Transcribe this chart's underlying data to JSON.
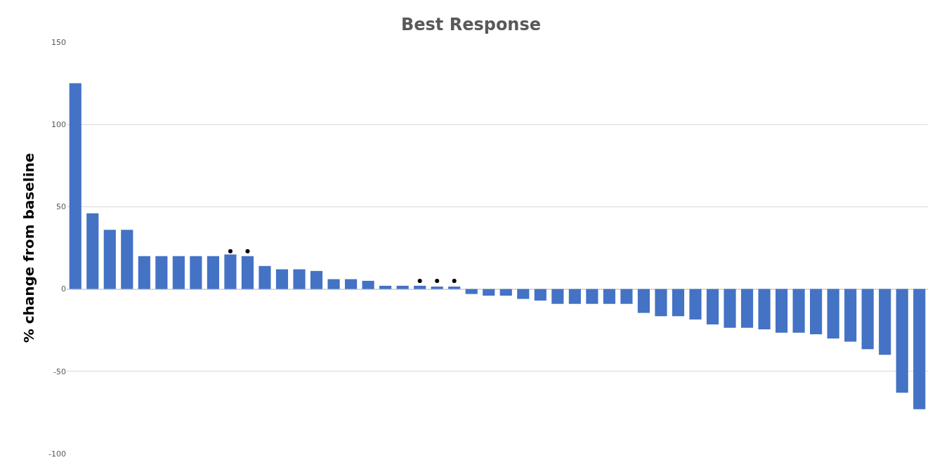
{
  "chart_data": {
    "type": "bar",
    "title": "Best Response",
    "ylabel": "% change from baseline",
    "categories": [
      null,
      null,
      null,
      null,
      null,
      null,
      null,
      null,
      null,
      null,
      null,
      null,
      null,
      null,
      null,
      null,
      null,
      null,
      null,
      null,
      null,
      null,
      null,
      null,
      null,
      null,
      null,
      null,
      null,
      null,
      null,
      null,
      null,
      null,
      null,
      null,
      null,
      null,
      null,
      null,
      null,
      null,
      null,
      null,
      null,
      null,
      null,
      null,
      null,
      null
    ],
    "series": [
      {
        "color": "#4472c4",
        "values": [
          125,
          46,
          36,
          36,
          20,
          20,
          20,
          20,
          20,
          21,
          20,
          14,
          12,
          12,
          11,
          6,
          6,
          5,
          2,
          2,
          2,
          1.5,
          1.5,
          -3,
          -4,
          -4,
          -6,
          -7,
          -9,
          -9,
          -9,
          -9,
          -9,
          -14.5,
          -16.5,
          -16.5,
          -18.5,
          -21.5,
          -23.5,
          -23.5,
          -24.5,
          -26.5,
          -26.5,
          -27.5,
          -30,
          -32,
          -36.5,
          -40,
          -63,
          -73
        ]
      },
      {
        "type": "scatter",
        "color": "#000000",
        "marker": "circle",
        "values": [
          null,
          null,
          null,
          null,
          null,
          null,
          null,
          null,
          null,
          23,
          23,
          null,
          null,
          null,
          null,
          null,
          null,
          null,
          null,
          null,
          5,
          5,
          5,
          null,
          null,
          null,
          null,
          null,
          null,
          null,
          null,
          null,
          null,
          null,
          null,
          null,
          null,
          null,
          null,
          null,
          null,
          null,
          null,
          null,
          null,
          null,
          null,
          null,
          null,
          null
        ]
      }
    ],
    "ylim": [
      -100,
      150
    ],
    "yticks": [
      -100,
      -50,
      0,
      50,
      100,
      150
    ],
    "grid": "y",
    "tick_labels": "y"
  }
}
